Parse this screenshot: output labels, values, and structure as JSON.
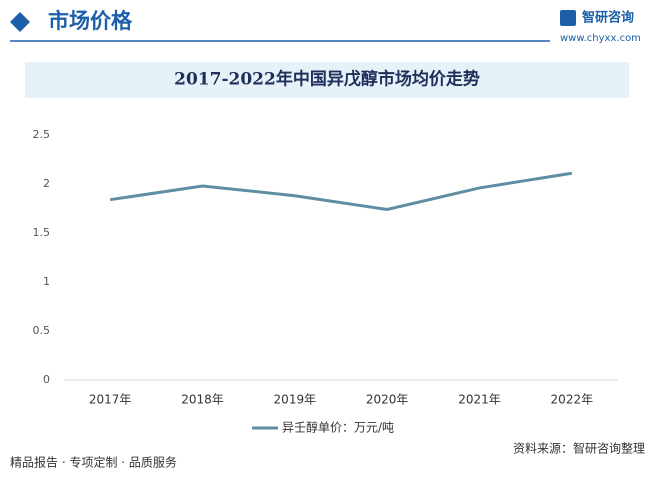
{
  "header": {
    "section": "市场价格",
    "brand": "智研咨询",
    "site": "www.chyxx.com"
  },
  "footer": {
    "left": "精品报告 · 专项定制 · 品质服务",
    "right": "资料来源：智研咨询整理"
  },
  "chart_data": {
    "type": "line",
    "title": "2017-2022年中国异戊醇市场均价走势",
    "categories": [
      "2017年",
      "2018年",
      "2019年",
      "2020年",
      "2021年",
      "2022年"
    ],
    "series": [
      {
        "name": "异壬醇单价：万元/吨",
        "color": "#5f8ea3",
        "values": [
          1.84,
          1.98,
          1.88,
          1.74,
          1.96,
          2.11
        ]
      }
    ],
    "ylim": [
      0,
      2.5
    ],
    "yticks": [
      0,
      0.5,
      1,
      1.5,
      2,
      2.5
    ],
    "grid": false,
    "legend": "bottom"
  }
}
